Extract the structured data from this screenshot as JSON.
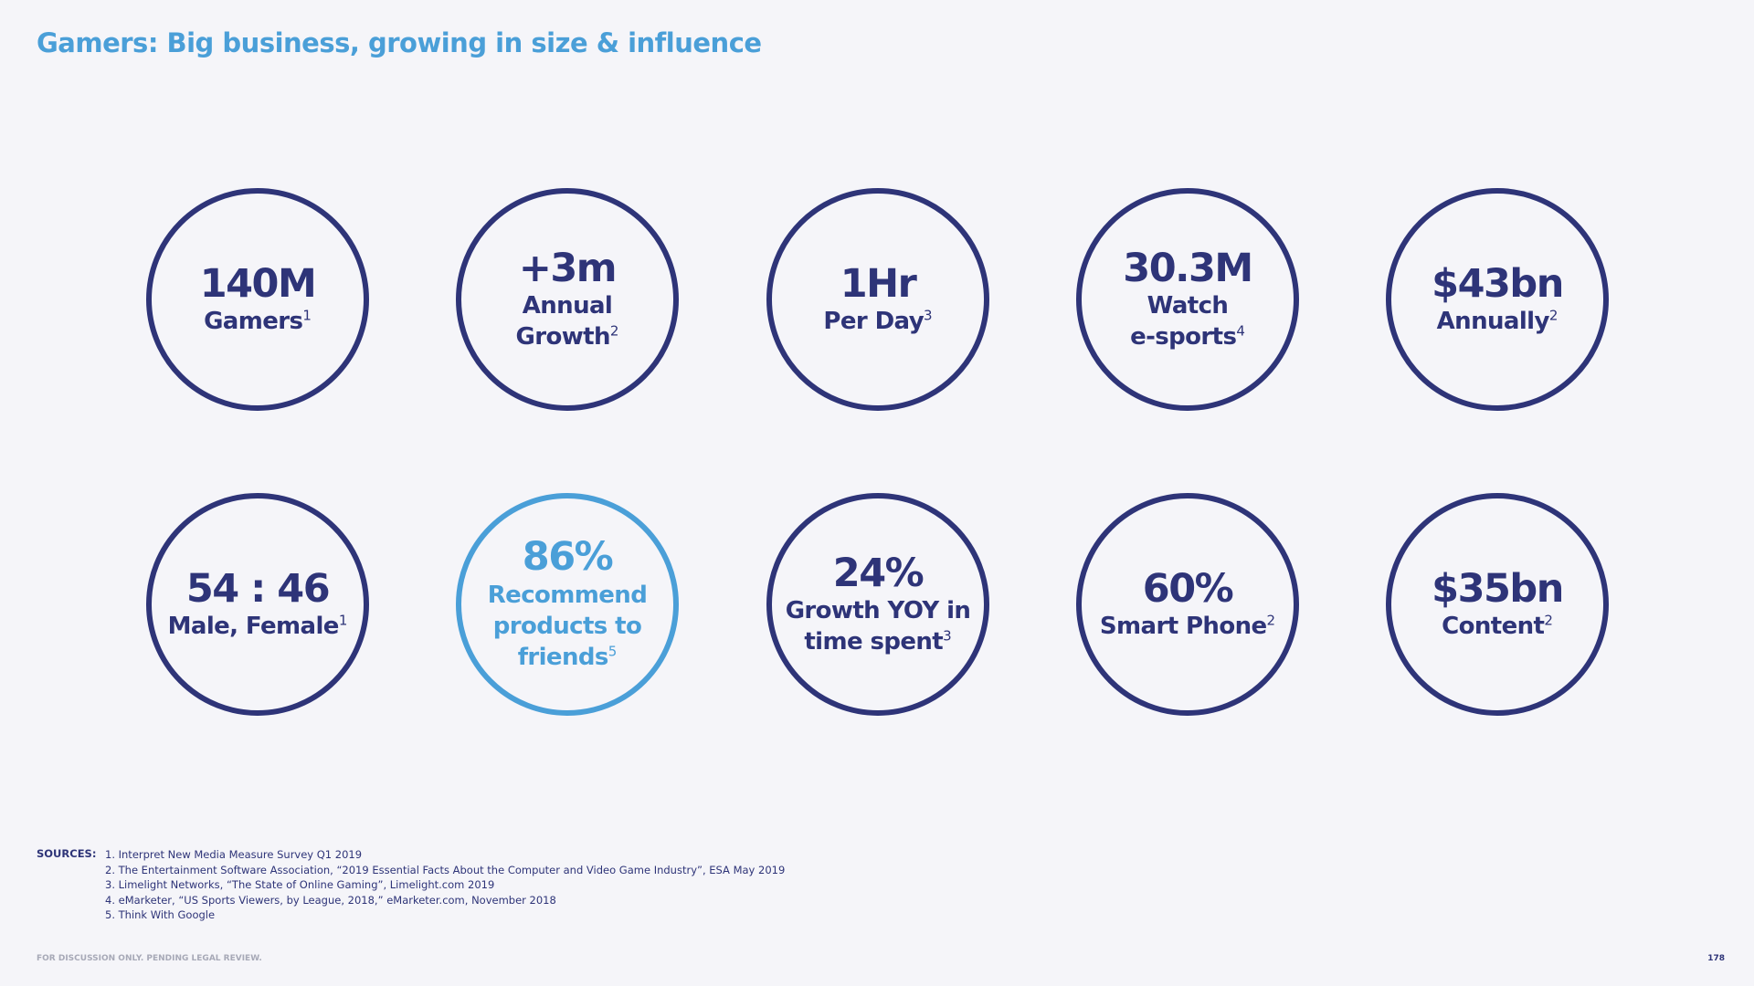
{
  "slide": {
    "title": "Gamers: Big business, growing in size & influence",
    "title_color": "#4a9fd8"
  },
  "stats": [
    {
      "value": "140M",
      "label_lines": [
        {
          "text": "Gamers",
          "sup": "1"
        }
      ]
    },
    {
      "value": "+3m",
      "label_lines": [
        {
          "text": "Annual",
          "sup": ""
        },
        {
          "text": "Growth",
          "sup": "2"
        }
      ]
    },
    {
      "value": "1Hr",
      "label_lines": [
        {
          "text": "Per Day",
          "sup": "3"
        }
      ]
    },
    {
      "value": "30.3M",
      "label_lines": [
        {
          "text": "Watch",
          "sup": ""
        },
        {
          "text": "e-sports",
          "sup": "4"
        }
      ]
    },
    {
      "value": "$43bn",
      "label_lines": [
        {
          "text": "Annually",
          "sup": "2"
        }
      ]
    },
    {
      "value": "54 : 46",
      "label_lines": [
        {
          "text": "Male, Female",
          "sup": "1"
        }
      ]
    },
    {
      "value": "86%",
      "highlight": true,
      "label_lines": [
        {
          "text": "Recommend",
          "sup": ""
        },
        {
          "text": "products to",
          "sup": ""
        },
        {
          "text": "friends",
          "sup": "5"
        }
      ]
    },
    {
      "value": "24%",
      "label_lines": [
        {
          "text": "Growth YOY in",
          "sup": ""
        },
        {
          "text": "time spent",
          "sup": "3"
        }
      ]
    },
    {
      "value": "60%",
      "label_lines": [
        {
          "text": "Smart Phone",
          "sup": "2"
        }
      ]
    },
    {
      "value": "$35bn",
      "label_lines": [
        {
          "text": "Content",
          "sup": "2"
        }
      ]
    }
  ],
  "colors": {
    "navy": "#2e3478",
    "accent": "#4a9fd8",
    "background": "#f5f5f9"
  },
  "sources": {
    "heading": "SOURCES:",
    "items": [
      "1. Interpret New Media Measure Survey Q1 2019",
      "2. The Entertainment Software Association, “2019 Essential Facts About the Computer and Video Game Industry”, ESA May 2019",
      "3. Limelight Networks, “The State of Online Gaming”, Limelight.com 2019",
      "4. eMarketer, “US Sports Viewers, by League, 2018,” eMarketer.com, November 2018",
      "5. Think With Google"
    ]
  },
  "footer": {
    "note": "FOR DISCUSSION ONLY. PENDING LEGAL REVIEW.",
    "page_number": "178"
  }
}
